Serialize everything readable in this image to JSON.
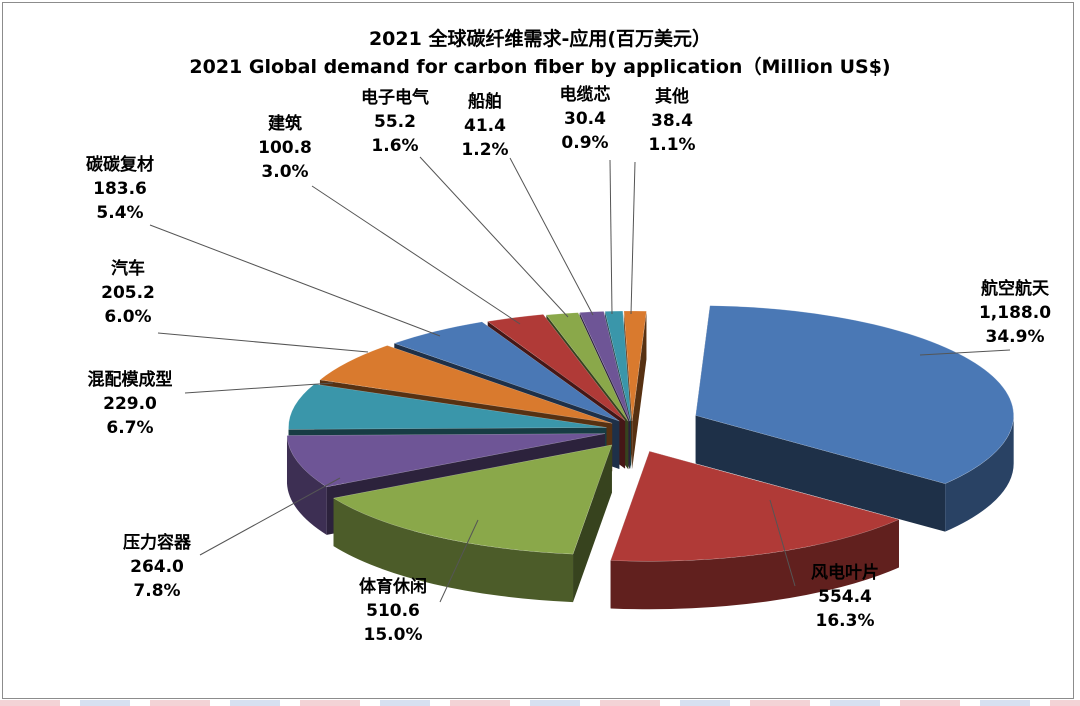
{
  "chart_data": {
    "type": "pie",
    "title": "2021 全球碳纤维需求-应用(百万美元）",
    "subtitle": "2021 Global demand for carbon fiber by application（Million US$)",
    "slices": [
      {
        "label": "航空航天",
        "value": 1188.0,
        "value_text": "1,188.0",
        "percent_text": "34.9%",
        "color": "#4a78b5"
      },
      {
        "label": "风电叶片",
        "value": 554.4,
        "value_text": "554.4",
        "percent_text": "16.3%",
        "color": "#b03a37"
      },
      {
        "label": "体育休闲",
        "value": 510.6,
        "value_text": "510.6",
        "percent_text": "15.0%",
        "color": "#8aa84a"
      },
      {
        "label": "压力容器",
        "value": 264.0,
        "value_text": "264.0",
        "percent_text": "7.8%",
        "color": "#6e5596"
      },
      {
        "label": "混配模成型",
        "value": 229.0,
        "value_text": "229.0",
        "percent_text": "6.7%",
        "color": "#3a96aa"
      },
      {
        "label": "汽车",
        "value": 205.2,
        "value_text": "205.2",
        "percent_text": "6.0%",
        "color": "#d97a2e"
      },
      {
        "label": "碳碳复材",
        "value": 183.6,
        "value_text": "183.6",
        "percent_text": "5.4%",
        "color": "#4a78b5"
      },
      {
        "label": "建筑",
        "value": 100.8,
        "value_text": "100.8",
        "percent_text": "3.0%",
        "color": "#b03a37"
      },
      {
        "label": "电子电气",
        "value": 55.2,
        "value_text": "55.2",
        "percent_text": "1.6%",
        "color": "#8aa84a"
      },
      {
        "label": "船舶",
        "value": 41.4,
        "value_text": "41.4",
        "percent_text": "1.2%",
        "color": "#6e5596"
      },
      {
        "label": "电缆芯",
        "value": 30.4,
        "value_text": "30.4",
        "percent_text": "0.9%",
        "color": "#3a96aa"
      },
      {
        "label": "其他",
        "value": 38.4,
        "value_text": "38.4",
        "percent_text": "1.1%",
        "color": "#d97a2e"
      }
    ],
    "legend": "none"
  }
}
